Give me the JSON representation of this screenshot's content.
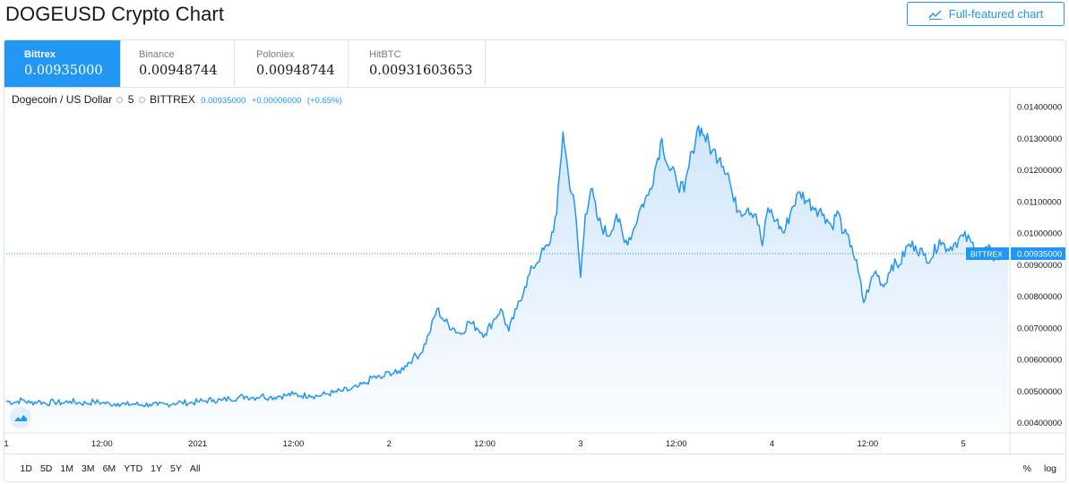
{
  "page_title": "DOGEUSD Crypto Chart",
  "full_featured_button": "Full-featured chart",
  "exchanges": [
    {
      "name": "Bittrex",
      "price": "0.00935000",
      "active": true
    },
    {
      "name": "Binance",
      "price": "0.00948744",
      "active": false
    },
    {
      "name": "Poloniex",
      "price": "0.00948744",
      "active": false
    },
    {
      "name": "HitBTC",
      "price": "0.00931603653",
      "active": false
    }
  ],
  "legend": {
    "symbol": "Dogecoin / US Dollar",
    "interval": "5",
    "exchange": "BITTREX",
    "last": "0.00935000",
    "change": "+0.00006000",
    "change_pct": "(+0.65%)"
  },
  "range_buttons": [
    "1D",
    "5D",
    "1M",
    "3M",
    "6M",
    "YTD",
    "1Y",
    "5Y",
    "All"
  ],
  "scale_options": {
    "percent": "%",
    "log": "log"
  },
  "colors": {
    "accent": "#2196f3",
    "line": "#2196f3",
    "fill_top": "#cfe5fb",
    "text": "#131722",
    "grid": "#e0e3eb"
  },
  "chart_data": {
    "type": "area",
    "title": "Dogecoin / US Dollar, 5, BITTREX",
    "x_unit": "hours since Jan 1, 00:00",
    "xlim": [
      0,
      125.6
    ],
    "x_ticks": [
      {
        "x": 0,
        "label": "1"
      },
      {
        "x": 12,
        "label": "12:00"
      },
      {
        "x": 24,
        "label": "2021"
      },
      {
        "x": 36,
        "label": "12:00"
      },
      {
        "x": 48,
        "label": "2"
      },
      {
        "x": 60,
        "label": "12:00"
      },
      {
        "x": 72,
        "label": "3"
      },
      {
        "x": 84,
        "label": "12:00"
      },
      {
        "x": 96,
        "label": "4"
      },
      {
        "x": 108,
        "label": "12:00"
      },
      {
        "x": 120,
        "label": "5"
      }
    ],
    "ylim": [
      0.00373,
      0.0146
    ],
    "y_ticks": [
      "0.00400000",
      "0.00500000",
      "0.00600000",
      "0.00700000",
      "0.00800000",
      "0.00900000",
      "0.01000000",
      "0.01100000",
      "0.01200000",
      "0.01300000",
      "0.01400000"
    ],
    "last_price_label": {
      "exchange": "BITTREX",
      "value": "0.00935000",
      "y": 0.00935
    },
    "series": [
      {
        "name": "DOGEUSD",
        "points": [
          [
            0,
            0.00468
          ],
          [
            1,
            0.00464
          ],
          [
            2,
            0.00472
          ],
          [
            3,
            0.00462
          ],
          [
            4,
            0.00468
          ],
          [
            5,
            0.0046
          ],
          [
            6,
            0.00466
          ],
          [
            7,
            0.00462
          ],
          [
            8,
            0.00468
          ],
          [
            9,
            0.00463
          ],
          [
            10,
            0.00461
          ],
          [
            11,
            0.00466
          ],
          [
            12,
            0.00463
          ],
          [
            13,
            0.00459
          ],
          [
            14,
            0.00461
          ],
          [
            15,
            0.00457
          ],
          [
            16,
            0.00459
          ],
          [
            17,
            0.00456
          ],
          [
            18,
            0.00458
          ],
          [
            19,
            0.00455
          ],
          [
            20,
            0.00458
          ],
          [
            21,
            0.00461
          ],
          [
            22,
            0.00464
          ],
          [
            23,
            0.00462
          ],
          [
            24,
            0.00466
          ],
          [
            25,
            0.00469
          ],
          [
            26,
            0.00472
          ],
          [
            27,
            0.0047
          ],
          [
            28,
            0.00476
          ],
          [
            29,
            0.00479
          ],
          [
            30,
            0.00483
          ],
          [
            31,
            0.00479
          ],
          [
            32,
            0.00486
          ],
          [
            33,
            0.0048
          ],
          [
            34,
            0.00483
          ],
          [
            35,
            0.00486
          ],
          [
            36,
            0.0049
          ],
          [
            37,
            0.00485
          ],
          [
            38,
            0.00488
          ],
          [
            39,
            0.00484
          ],
          [
            40,
            0.0049
          ],
          [
            41,
            0.00495
          ],
          [
            42,
            0.005
          ],
          [
            43,
            0.00503
          ],
          [
            44,
            0.00512
          ],
          [
            45,
            0.00523
          ],
          [
            46,
            0.00545
          ],
          [
            47,
            0.0054
          ],
          [
            48,
            0.0056
          ],
          [
            49,
            0.00555
          ],
          [
            50,
            0.0058
          ],
          [
            51,
            0.00605
          ],
          [
            52,
            0.0062
          ],
          [
            53,
            0.0068
          ],
          [
            54,
            0.0076
          ],
          [
            55,
            0.0072
          ],
          [
            56,
            0.007
          ],
          [
            57,
            0.0068
          ],
          [
            58,
            0.0072
          ],
          [
            59,
            0.007
          ],
          [
            60,
            0.0068
          ],
          [
            61,
            0.0072
          ],
          [
            62,
            0.0076
          ],
          [
            63,
            0.0069
          ],
          [
            64,
            0.0076
          ],
          [
            65,
            0.0083
          ],
          [
            66,
            0.0089
          ],
          [
            67,
            0.0093
          ],
          [
            68,
            0.0096
          ],
          [
            69,
            0.0106
          ],
          [
            69.8,
            0.0132
          ],
          [
            70.5,
            0.0118
          ],
          [
            71.3,
            0.0108
          ],
          [
            72,
            0.0086
          ],
          [
            72.6,
            0.0106
          ],
          [
            73.3,
            0.0114
          ],
          [
            74.2,
            0.0104
          ],
          [
            75.5,
            0.0099
          ],
          [
            76.5,
            0.0106
          ],
          [
            77.5,
            0.0097
          ],
          [
            78.5,
            0.01
          ],
          [
            79.5,
            0.0108
          ],
          [
            80.5,
            0.0112
          ],
          [
            81.5,
            0.0122
          ],
          [
            82.2,
            0.013
          ],
          [
            83,
            0.0121
          ],
          [
            84,
            0.0117
          ],
          [
            85,
            0.0113
          ],
          [
            86,
            0.0126
          ],
          [
            86.8,
            0.0134
          ],
          [
            87.5,
            0.0131
          ],
          [
            88.5,
            0.0126
          ],
          [
            89.5,
            0.0124
          ],
          [
            90.5,
            0.0119
          ],
          [
            91.2,
            0.011
          ],
          [
            92,
            0.0107
          ],
          [
            93,
            0.0108
          ],
          [
            94,
            0.0106
          ],
          [
            94.8,
            0.0096
          ],
          [
            95.5,
            0.0108
          ],
          [
            96.5,
            0.0104
          ],
          [
            97.5,
            0.01
          ],
          [
            98.5,
            0.0108
          ],
          [
            99.5,
            0.0113
          ],
          [
            100.5,
            0.011
          ],
          [
            101.5,
            0.0108
          ],
          [
            102.5,
            0.0106
          ],
          [
            103.5,
            0.0102
          ],
          [
            104.2,
            0.0107
          ],
          [
            105,
            0.01
          ],
          [
            106,
            0.0096
          ],
          [
            106.8,
            0.0088
          ],
          [
            107.5,
            0.0078
          ],
          [
            108.3,
            0.0084
          ],
          [
            109,
            0.0088
          ],
          [
            110,
            0.0083
          ],
          [
            111,
            0.009
          ],
          [
            112,
            0.009
          ],
          [
            113,
            0.0096
          ],
          [
            114,
            0.0096
          ],
          [
            115,
            0.0093
          ],
          [
            116,
            0.0092
          ],
          [
            117,
            0.0098
          ],
          [
            118,
            0.0095
          ],
          [
            119,
            0.0097
          ],
          [
            120,
            0.0099
          ],
          [
            121,
            0.0097
          ],
          [
            122,
            0.0093
          ],
          [
            123,
            0.0095
          ],
          [
            124,
            0.0092
          ],
          [
            125.6,
            0.00935
          ]
        ]
      }
    ]
  }
}
